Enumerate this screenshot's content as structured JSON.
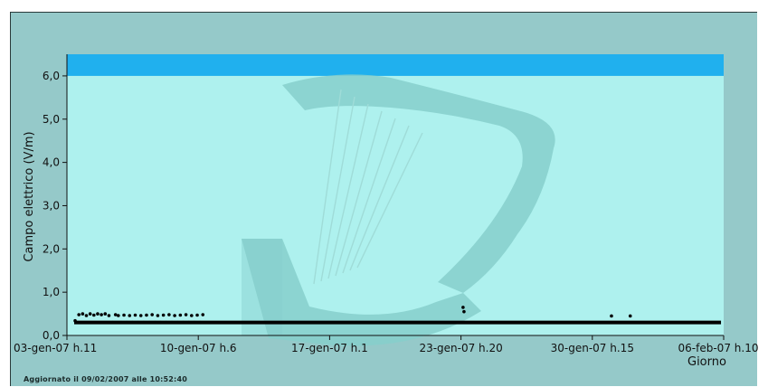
{
  "colors": {
    "frame_background": "#95c9c9",
    "plot_background": "#aef1ee",
    "limit_band": "#20b0ee",
    "watermark": "#86cfcb",
    "data_points": "#000000"
  },
  "watermark_icon": "harp-logo-icon",
  "footer": {
    "updated_prefix": "Aggiornato il",
    "updated_datetime": "09/02/2007 alle 10:52:40"
  },
  "chart_data": {
    "type": "scatter",
    "title": "",
    "xlabel": "Giorno",
    "ylabel": "Campo elettrico (V/m)",
    "ylim": [
      0,
      6.5
    ],
    "xlim": [
      "03-gen-07 h.11",
      "06-feb-07 h.10"
    ],
    "grid": false,
    "legend": "none",
    "y_ticks": [
      "0,0",
      "1,0",
      "2,0",
      "3,0",
      "4,0",
      "5,0",
      "6,0"
    ],
    "x_ticks": [
      "03-gen-07 h.11",
      "10-gen-07 h.6",
      "17-gen-07 h.1",
      "23-gen-07 h.20",
      "30-gen-07 h.15",
      "06-feb-07 h.10"
    ],
    "bands": [
      {
        "label": "",
        "y_from": 6.0,
        "y_to": 6.5
      }
    ],
    "series": [
      {
        "description_axis": "days since start",
        "points": [
          [
            0.05,
            0.34
          ],
          [
            0.25,
            0.48
          ],
          [
            0.45,
            0.5
          ],
          [
            0.65,
            0.46
          ],
          [
            0.85,
            0.5
          ],
          [
            1.05,
            0.47
          ],
          [
            1.25,
            0.5
          ],
          [
            1.45,
            0.48
          ],
          [
            1.65,
            0.5
          ],
          [
            1.85,
            0.46
          ],
          [
            2.05,
            0.3
          ],
          [
            2.2,
            0.48
          ],
          [
            2.35,
            0.46
          ],
          [
            2.5,
            0.3
          ],
          [
            2.65,
            0.47
          ],
          [
            2.8,
            0.3
          ],
          [
            2.95,
            0.46
          ],
          [
            3.1,
            0.3
          ],
          [
            3.25,
            0.47
          ],
          [
            3.4,
            0.3
          ],
          [
            3.55,
            0.46
          ],
          [
            3.7,
            0.3
          ],
          [
            3.85,
            0.47
          ],
          [
            4.0,
            0.3
          ],
          [
            4.15,
            0.48
          ],
          [
            4.3,
            0.3
          ],
          [
            4.45,
            0.46
          ],
          [
            4.6,
            0.3
          ],
          [
            4.75,
            0.47
          ],
          [
            4.9,
            0.3
          ],
          [
            5.05,
            0.48
          ],
          [
            5.2,
            0.3
          ],
          [
            5.35,
            0.46
          ],
          [
            5.5,
            0.3
          ],
          [
            5.65,
            0.47
          ],
          [
            5.8,
            0.3
          ],
          [
            5.95,
            0.48
          ],
          [
            6.1,
            0.3
          ],
          [
            6.25,
            0.46
          ],
          [
            6.4,
            0.3
          ],
          [
            6.55,
            0.47
          ],
          [
            6.7,
            0.3
          ],
          [
            6.85,
            0.48
          ],
          [
            20.7,
            0.65
          ],
          [
            20.75,
            0.55
          ],
          [
            28.6,
            0.45
          ],
          [
            29.6,
            0.45
          ]
        ],
        "baseline": {
          "from_day": 0,
          "to_day": 34.96,
          "value": 0.3
        }
      }
    ]
  }
}
